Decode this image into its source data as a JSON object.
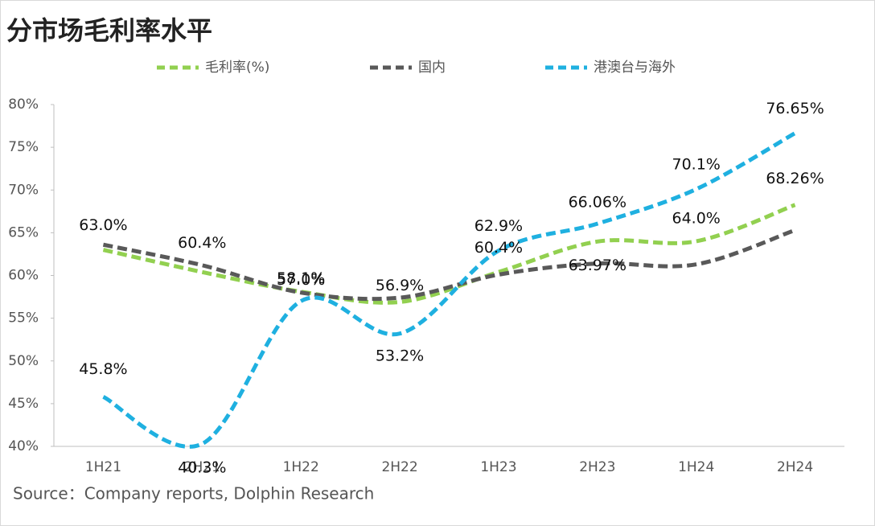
{
  "chart_data": {
    "type": "line",
    "title": "分市场毛利率水平",
    "categories": [
      "1H21",
      "2H21",
      "1H22",
      "2H22",
      "1H23",
      "2H23",
      "1H24",
      "2H24"
    ],
    "ylim": [
      40,
      80
    ],
    "yticks": [
      {
        "value": 40,
        "label": "40%"
      },
      {
        "value": 45,
        "label": "45%"
      },
      {
        "value": 50,
        "label": "50%"
      },
      {
        "value": 55,
        "label": "55%"
      },
      {
        "value": 60,
        "label": "60%"
      },
      {
        "value": 65,
        "label": "65%"
      },
      {
        "value": 70,
        "label": "70%"
      },
      {
        "value": 75,
        "label": "75%"
      },
      {
        "value": 80,
        "label": "80%"
      }
    ],
    "series": [
      {
        "name": "毛利率(%)",
        "color": "#92d050",
        "values": [
          63.0,
          60.4,
          58.1,
          56.9,
          60.4,
          63.97,
          64.0,
          68.26
        ],
        "value_labels": [
          "63.0%",
          "60.4%",
          "58.1%",
          "56.9%",
          "60.4%",
          "63.97%",
          "64.0%",
          "68.26%"
        ]
      },
      {
        "name": "国内",
        "color": "#595959",
        "values": [
          63.6,
          61.2,
          58.0,
          57.4,
          60.1,
          61.4,
          61.3,
          65.3
        ]
      },
      {
        "name": "港澳台与海外",
        "color": "#1fb0e0",
        "values": [
          45.8,
          40.3,
          57.0,
          53.2,
          62.9,
          66.06,
          70.1,
          76.65
        ],
        "value_labels": [
          "45.8%",
          "40.3%",
          "57.0%",
          "53.2%",
          "62.9%",
          "66.06%",
          "70.1%",
          "76.65%"
        ]
      }
    ],
    "source": "Source：Company reports, Dolphin Research"
  }
}
